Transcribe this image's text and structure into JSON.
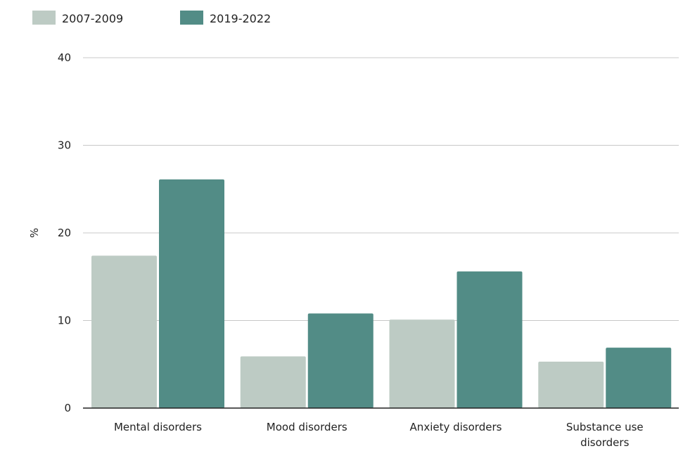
{
  "chart_data": {
    "type": "bar",
    "categories": [
      [
        "Mental disorders"
      ],
      [
        "Mood disorders"
      ],
      [
        "Anxiety disorders"
      ],
      [
        "Substance use",
        "disorders"
      ]
    ],
    "series": [
      {
        "name": "2007-2009",
        "color": "#bdcbc4",
        "values": [
          17.4,
          5.9,
          10.1,
          5.3
        ]
      },
      {
        "name": "2019-2022",
        "color": "#528c86",
        "values": [
          26.1,
          10.8,
          15.6,
          6.9
        ]
      }
    ],
    "ylabel": "%",
    "xlabel": "",
    "ylim": [
      0,
      40
    ],
    "yticks": [
      0,
      10,
      20,
      30,
      40
    ],
    "grid": true,
    "legend_position": "top-left"
  }
}
